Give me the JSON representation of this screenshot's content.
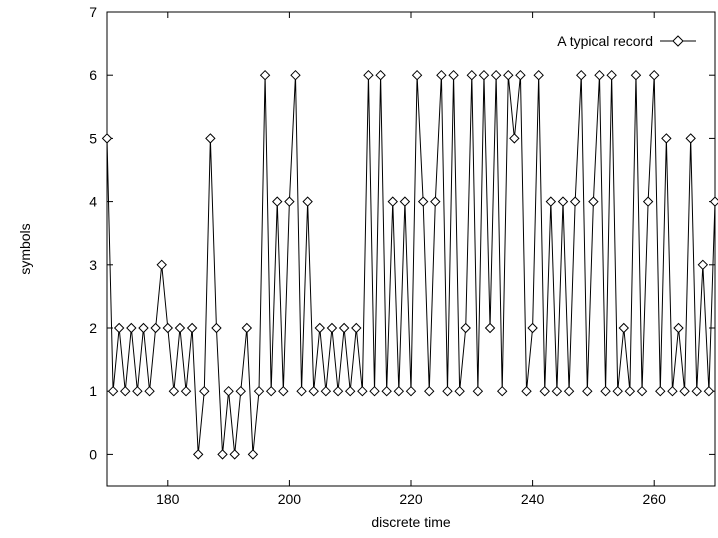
{
  "chart_data": {
    "type": "line",
    "xlabel": "discrete time",
    "ylabel": "symbols",
    "xlim": [
      170,
      270
    ],
    "ylim": [
      -0.5,
      7
    ],
    "xticks": [
      180,
      200,
      220,
      240,
      260
    ],
    "yticks": [
      0,
      1,
      2,
      3,
      4,
      5,
      6,
      7
    ],
    "legend_position": "top-right",
    "grid": false,
    "series": [
      {
        "name": "A typical record",
        "marker": "diamond",
        "color": "#000000",
        "x": [
          170,
          171,
          172,
          173,
          174,
          175,
          176,
          177,
          178,
          179,
          180,
          181,
          182,
          183,
          184,
          185,
          186,
          187,
          188,
          189,
          190,
          191,
          192,
          193,
          194,
          195,
          196,
          197,
          198,
          199,
          200,
          201,
          202,
          203,
          204,
          205,
          206,
          207,
          208,
          209,
          210,
          211,
          212,
          213,
          214,
          215,
          216,
          217,
          218,
          219,
          220,
          221,
          222,
          223,
          224,
          225,
          226,
          227,
          228,
          229,
          230,
          231,
          232,
          233,
          234,
          235,
          236,
          237,
          238,
          239,
          240,
          241,
          242,
          243,
          244,
          245,
          246,
          247,
          248,
          249,
          250,
          251,
          252,
          253,
          254,
          255,
          256,
          257,
          258,
          259,
          260,
          261,
          262,
          263,
          264,
          265,
          266,
          267,
          268,
          269,
          270
        ],
        "y": [
          5,
          1,
          2,
          1,
          2,
          1,
          2,
          1,
          2,
          3,
          2,
          1,
          2,
          1,
          2,
          0,
          1,
          5,
          2,
          0,
          1,
          0,
          1,
          2,
          0,
          1,
          6,
          1,
          4,
          1,
          4,
          6,
          1,
          4,
          1,
          2,
          1,
          2,
          1,
          2,
          1,
          2,
          1,
          6,
          1,
          6,
          1,
          4,
          1,
          4,
          1,
          6,
          4,
          1,
          4,
          6,
          1,
          6,
          1,
          2,
          6,
          1,
          6,
          2,
          6,
          1,
          6,
          5,
          6,
          1,
          2,
          6,
          1,
          4,
          1,
          4,
          1,
          4,
          6,
          1,
          4,
          6,
          1,
          6,
          1,
          2,
          1,
          6,
          1,
          4,
          6,
          1,
          5,
          1,
          2,
          1,
          5,
          1,
          3,
          1,
          4
        ]
      }
    ]
  }
}
